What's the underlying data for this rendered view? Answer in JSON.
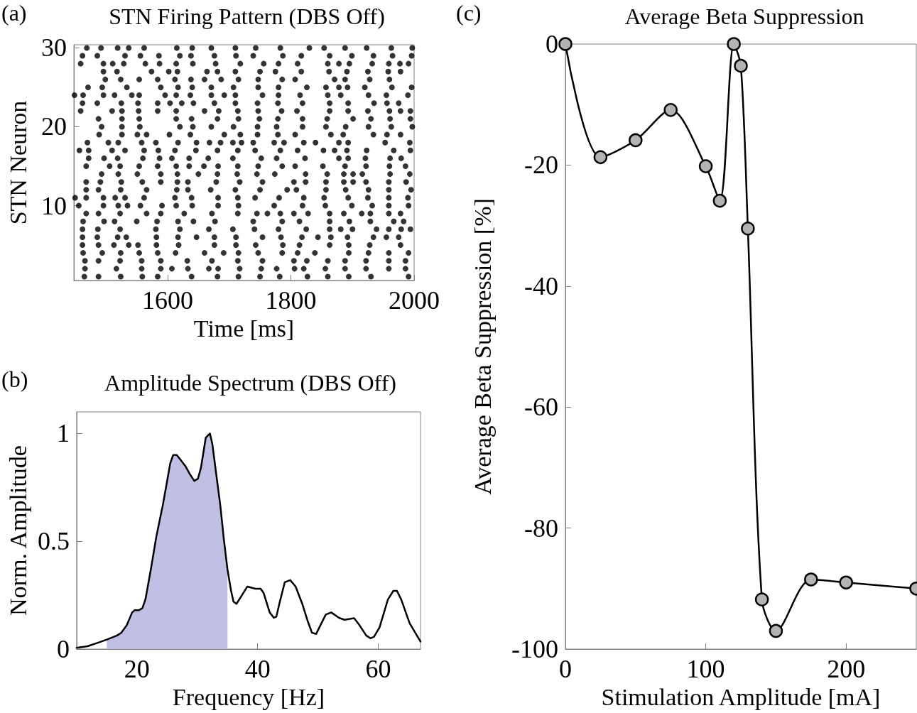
{
  "chart_data": [
    {
      "type": "scatter",
      "title": "STN Firing Pattern (DBS Off)",
      "xlabel": "Time [ms]",
      "ylabel": "STN Neuron",
      "annotations": [
        "(a)"
      ],
      "marker": "circle",
      "xlim": [
        1448,
        2000
      ],
      "xticks": [
        1600,
        1800,
        2000
      ],
      "ylim": [
        0.5,
        30.4
      ],
      "yticks": [
        10,
        20,
        30
      ],
      "series": [
        {
          "color": "#000000",
          "x": [
            1469,
            1492,
            1519,
            1537,
            1562,
            1615,
            1640,
            1671,
            1710,
            1743,
            1783,
            1830,
            1854,
            1888,
            1923,
            1963,
            1997
          ],
          "values": [
            30,
            30,
            30,
            30,
            30,
            30,
            30,
            30,
            30,
            30,
            30,
            30,
            30,
            30,
            30,
            30,
            30
          ]
        },
        {
          "color": "#000000",
          "x": [
            1462,
            1486,
            1531,
            1556,
            1586,
            1620,
            1638,
            1676,
            1711,
            1739,
            1787,
            1817,
            1863,
            1899,
            1934,
            1965,
            1996
          ],
          "values": [
            29,
            29,
            29,
            29,
            29,
            29,
            29,
            29,
            29,
            29,
            29,
            29,
            29,
            29,
            29,
            29,
            29
          ]
        },
        {
          "color": "#000000",
          "x": [
            1459,
            1496,
            1511,
            1529,
            1564,
            1587,
            1614,
            1641,
            1678,
            1718,
            1756,
            1780,
            1811,
            1860,
            1878,
            1895,
            1932,
            1959,
            1977,
            1991
          ],
          "values": [
            28,
            28,
            28,
            28,
            28,
            28,
            28,
            28,
            28,
            28,
            28,
            28,
            28,
            28,
            28,
            28,
            28,
            28,
            28,
            28
          ]
        },
        {
          "color": "#000000",
          "x": [
            1496,
            1518,
            1574,
            1602,
            1616,
            1664,
            1681,
            1710,
            1750,
            1775,
            1817,
            1862,
            1891,
            1925,
            1958,
            1978
          ],
          "values": [
            27,
            27,
            27,
            27,
            27,
            27,
            27,
            27,
            27,
            27,
            27,
            27,
            27,
            27,
            27,
            27
          ]
        },
        {
          "color": "#000000",
          "x": [
            1499,
            1524,
            1554,
            1584,
            1612,
            1638,
            1660,
            1687,
            1715,
            1747,
            1786,
            1807,
            1871,
            1888,
            1928,
            1960
          ],
          "values": [
            26,
            26,
            26,
            26,
            26,
            26,
            26,
            26,
            26,
            26,
            26,
            26,
            26,
            26,
            26,
            26
          ]
        },
        {
          "color": "#000000",
          "x": [
            1471,
            1494,
            1534,
            1589,
            1617,
            1640,
            1671,
            1707,
            1747,
            1780,
            1826,
            1857,
            1878,
            1892,
            1920,
            1964,
            1996
          ],
          "values": [
            25,
            25,
            25,
            25,
            25,
            25,
            25,
            25,
            25,
            25,
            25,
            25,
            25,
            25,
            25,
            25,
            25
          ]
        },
        {
          "color": "#000000",
          "x": [
            1449,
            1463,
            1496,
            1514,
            1542,
            1554,
            1596,
            1614,
            1637,
            1671,
            1692,
            1710,
            1754,
            1780,
            1815,
            1860,
            1881,
            1926,
            1955,
            1990
          ],
          "values": [
            24,
            24,
            24,
            24,
            24,
            24,
            24,
            24,
            24,
            24,
            24,
            24,
            24,
            24,
            24,
            24,
            24,
            24,
            24,
            24
          ]
        },
        {
          "color": "#000000",
          "x": [
            1462,
            1486,
            1525,
            1552,
            1584,
            1604,
            1623,
            1642,
            1676,
            1710,
            1746,
            1779,
            1819,
            1863,
            1893,
            1935,
            1956,
            1975
          ],
          "values": [
            23,
            23,
            23,
            23,
            23,
            23,
            23,
            23,
            23,
            23,
            23,
            23,
            23,
            23,
            23,
            23,
            23,
            23
          ]
        },
        {
          "color": "#000000",
          "x": [
            1459,
            1510,
            1526,
            1553,
            1584,
            1614,
            1660,
            1683,
            1714,
            1747,
            1785,
            1810,
            1863,
            1893,
            1925,
            1960,
            1978,
            1994
          ],
          "values": [
            22,
            22,
            22,
            22,
            22,
            22,
            22,
            22,
            22,
            22,
            22,
            22,
            22,
            22,
            22,
            22,
            22,
            22
          ]
        },
        {
          "color": "#000000",
          "x": [
            1488,
            1526,
            1554,
            1614,
            1639,
            1681,
            1715,
            1749,
            1779,
            1819,
            1859,
            1901,
            1930,
            1961,
            1994
          ],
          "values": [
            21,
            21,
            21,
            21,
            21,
            21,
            21,
            21,
            21,
            21,
            21,
            21,
            21,
            21,
            21
          ]
        },
        {
          "color": "#000000",
          "x": [
            1493,
            1526,
            1555,
            1620,
            1641,
            1671,
            1707,
            1746,
            1777,
            1819,
            1857,
            1889,
            1926,
            1963,
            1997
          ],
          "values": [
            20,
            20,
            20,
            20,
            20,
            20,
            20,
            20,
            20,
            20,
            20,
            20,
            20,
            20,
            20
          ]
        },
        {
          "color": "#000000",
          "x": [
            1489,
            1526,
            1551,
            1566,
            1603,
            1637,
            1692,
            1718,
            1746,
            1779,
            1807,
            1865,
            1885,
            1934,
            1956,
            1978
          ],
          "values": [
            19,
            19,
            19,
            19,
            19,
            19,
            19,
            19,
            19,
            19,
            19,
            19,
            19,
            19,
            19,
            19
          ]
        },
        {
          "color": "#000000",
          "x": [
            1470,
            1504,
            1520,
            1558,
            1581,
            1617,
            1647,
            1668,
            1686,
            1706,
            1720,
            1739,
            1773,
            1789,
            1821,
            1840,
            1878,
            1893,
            1953,
            1993
          ],
          "values": [
            18,
            18,
            18,
            18,
            18,
            18,
            18,
            18,
            18,
            18,
            18,
            18,
            18,
            18,
            18,
            18,
            18,
            18,
            18,
            18
          ]
        },
        {
          "color": "#000000",
          "x": [
            1457,
            1472,
            1510,
            1531,
            1562,
            1585,
            1612,
            1646,
            1681,
            1714,
            1742,
            1783,
            1811,
            1853,
            1871,
            1891,
            1923,
            1967,
            1994
          ],
          "values": [
            17,
            17,
            17,
            17,
            17,
            17,
            17,
            17,
            17,
            17,
            17,
            17,
            17,
            17,
            17,
            17,
            17,
            17,
            17
          ]
        },
        {
          "color": "#000000",
          "x": [
            1472,
            1497,
            1519,
            1560,
            1587,
            1607,
            1635,
            1666,
            1706,
            1752,
            1777,
            1823,
            1878,
            1893,
            1921,
            1961,
            1979
          ],
          "values": [
            16,
            16,
            16,
            16,
            16,
            16,
            16,
            16,
            16,
            16,
            16,
            16,
            16,
            16,
            16,
            16,
            16
          ]
        },
        {
          "color": "#000000",
          "x": [
            1468,
            1506,
            1523,
            1554,
            1584,
            1614,
            1635,
            1659,
            1682,
            1714,
            1747,
            1786,
            1807,
            1852,
            1888,
            1922,
            1960,
            1986
          ],
          "values": [
            15,
            15,
            15,
            15,
            15,
            15,
            15,
            15,
            15,
            15,
            15,
            15,
            15,
            15,
            15,
            15,
            15,
            15
          ]
        },
        {
          "color": "#000000",
          "x": [
            1493,
            1520,
            1551,
            1589,
            1616,
            1650,
            1681,
            1713,
            1745,
            1774,
            1824,
            1859,
            1886,
            1901,
            1916,
            1961,
            1993
          ],
          "values": [
            14,
            14,
            14,
            14,
            14,
            14,
            14,
            14,
            14,
            14,
            14,
            14,
            14,
            14,
            14,
            14,
            14
          ]
        },
        {
          "color": "#000000",
          "x": [
            1468,
            1491,
            1525,
            1559,
            1589,
            1616,
            1633,
            1679,
            1717,
            1754,
            1805,
            1824,
            1857,
            1886,
            1901,
            1922,
            1959,
            1987
          ],
          "values": [
            13,
            13,
            13,
            13,
            13,
            13,
            13,
            13,
            13,
            13,
            13,
            13,
            13,
            13,
            13,
            13,
            13,
            13
          ]
        },
        {
          "color": "#000000",
          "x": [
            1468,
            1488,
            1524,
            1566,
            1615,
            1633,
            1670,
            1710,
            1750,
            1794,
            1809,
            1857,
            1889,
            1926,
            1959,
            1995
          ],
          "values": [
            12,
            12,
            12,
            12,
            12,
            12,
            12,
            12,
            12,
            12,
            12,
            12,
            12,
            12,
            12,
            12
          ]
        },
        {
          "color": "#000000",
          "x": [
            1450,
            1468,
            1496,
            1515,
            1531,
            1562,
            1612,
            1639,
            1682,
            1714,
            1742,
            1781,
            1821,
            1854,
            1893,
            1925,
            1959,
            1990
          ],
          "values": [
            11,
            11,
            11,
            11,
            11,
            11,
            11,
            11,
            11,
            11,
            11,
            11,
            11,
            11,
            11,
            11,
            11,
            11
          ]
        },
        {
          "color": "#000000",
          "x": [
            1456,
            1496,
            1520,
            1535,
            1556,
            1591,
            1614,
            1640,
            1682,
            1715,
            1773,
            1819,
            1856,
            1899,
            1932,
            1959,
            1991
          ],
          "values": [
            10,
            10,
            10,
            10,
            10,
            10,
            10,
            10,
            10,
            10,
            10,
            10,
            10,
            10,
            10,
            10,
            10
          ]
        },
        {
          "color": "#000000",
          "x": [
            1468,
            1488,
            1523,
            1566,
            1589,
            1627,
            1672,
            1714,
            1745,
            1762,
            1783,
            1805,
            1828,
            1863,
            1886,
            1915,
            1929,
            1959,
            1978
          ],
          "values": [
            9,
            9,
            9,
            9,
            9,
            9,
            9,
            9,
            9,
            9,
            9,
            9,
            9,
            9,
            9,
            9,
            9,
            9,
            9
          ]
        },
        {
          "color": "#000000",
          "x": [
            1463,
            1497,
            1514,
            1550,
            1583,
            1617,
            1642,
            1677,
            1739,
            1786,
            1814,
            1863,
            1895,
            1929,
            1967,
            1983
          ],
          "values": [
            8,
            8,
            8,
            8,
            8,
            8,
            8,
            8,
            8,
            8,
            8,
            8,
            8,
            8,
            8,
            8
          ]
        },
        {
          "color": "#000000",
          "x": [
            1462,
            1487,
            1523,
            1581,
            1620,
            1667,
            1706,
            1741,
            1780,
            1825,
            1863,
            1881,
            1900,
            1939,
            1959,
            1979,
            1994
          ],
          "values": [
            7,
            7,
            7,
            7,
            7,
            7,
            7,
            7,
            7,
            7,
            7,
            7,
            7,
            7,
            7,
            7,
            7
          ]
        },
        {
          "color": "#000000",
          "x": [
            1462,
            1486,
            1519,
            1533,
            1582,
            1617,
            1647,
            1676,
            1711,
            1754,
            1784,
            1818,
            1844,
            1865,
            1892,
            1934,
            1955,
            1975
          ],
          "values": [
            6,
            6,
            6,
            6,
            6,
            6,
            6,
            6,
            6,
            6,
            6,
            6,
            6,
            6,
            6,
            6,
            6,
            6
          ]
        },
        {
          "color": "#000000",
          "x": [
            1462,
            1488,
            1513,
            1537,
            1552,
            1582,
            1618,
            1676,
            1711,
            1743,
            1787,
            1814,
            1863,
            1894,
            1928,
            1978
          ],
          "values": [
            5,
            5,
            5,
            5,
            5,
            5,
            5,
            5,
            5,
            5,
            5,
            5,
            5,
            5,
            5,
            5
          ]
        },
        {
          "color": "#000000",
          "x": [
            1463,
            1494,
            1524,
            1554,
            1584,
            1613,
            1660,
            1691,
            1715,
            1747,
            1786,
            1811,
            1839,
            1894,
            1926,
            1959,
            1991
          ],
          "values": [
            4,
            4,
            4,
            4,
            4,
            4,
            4,
            4,
            4,
            4,
            4,
            4,
            4,
            4,
            4,
            4,
            4
          ]
        },
        {
          "color": "#000000",
          "x": [
            1466,
            1488,
            1523,
            1558,
            1589,
            1632,
            1672,
            1714,
            1754,
            1805,
            1826,
            1860,
            1888,
            1922,
            1959,
            1986
          ],
          "values": [
            3,
            3,
            3,
            3,
            3,
            3,
            3,
            3,
            3,
            3,
            3,
            3,
            3,
            3,
            3,
            3
          ]
        },
        {
          "color": "#000000",
          "x": [
            1466,
            1517,
            1558,
            1589,
            1607,
            1633,
            1667,
            1682,
            1717,
            1752,
            1777,
            1806,
            1821,
            1856,
            1888,
            1922,
            1959,
            1986
          ],
          "values": [
            2,
            2,
            2,
            2,
            2,
            2,
            2,
            2,
            2,
            2,
            2,
            2,
            2,
            2,
            2,
            2,
            2,
            2
          ]
        },
        {
          "color": "#000000",
          "x": [
            1465,
            1488,
            1524,
            1559,
            1584,
            1639,
            1681,
            1715,
            1750,
            1782,
            1827,
            1860,
            1894,
            1930,
            1991
          ],
          "values": [
            1,
            1,
            1,
            1,
            1,
            1,
            1,
            1,
            1,
            1,
            1,
            1,
            1,
            1,
            1
          ]
        }
      ]
    },
    {
      "type": "line",
      "title": "Amplitude Spectrum (DBS Off)",
      "xlabel": "Frequency [Hz]",
      "ylabel": "Norm. Amplitude",
      "annotations": [
        "(b)"
      ],
      "marker": "none",
      "xlim": [
        10,
        67
      ],
      "xticks": [
        20,
        40,
        60
      ],
      "ylim": [
        0,
        1.1
      ],
      "yticks": [
        0,
        0.5,
        1
      ],
      "series": [
        {
          "type": "area",
          "color": "#bfc0e3",
          "x": [
            15,
            16.7,
            17.4,
            18.3,
            19.2,
            19.6,
            20.3,
            20.9,
            21.4,
            22.3,
            23.2,
            24.3,
            25,
            25.5,
            26,
            26.6,
            28,
            28.8,
            29.5,
            30.1,
            30.6,
            31.4,
            32.1,
            32.5,
            33.1,
            33.8,
            34.4,
            35
          ],
          "values": [
            0.044,
            0.063,
            0.076,
            0.11,
            0.17,
            0.18,
            0.18,
            0.19,
            0.23,
            0.37,
            0.52,
            0.67,
            0.78,
            0.86,
            0.9,
            0.9,
            0.85,
            0.81,
            0.78,
            0.79,
            0.84,
            0.98,
            1,
            0.95,
            0.82,
            0.67,
            0.51,
            0.37
          ]
        },
        {
          "color": "#000000",
          "x": [
            10,
            11.8,
            13.6,
            15,
            16.7,
            17.4,
            18.3,
            19.2,
            19.6,
            20.3,
            20.9,
            21.4,
            22.3,
            23.2,
            24.3,
            25,
            25.5,
            26,
            26.6,
            28,
            28.8,
            29.5,
            30.1,
            30.6,
            31.4,
            32.1,
            32.5,
            33.1,
            33.8,
            34.4,
            35,
            35.6,
            36,
            36.5,
            37.4,
            38.3,
            39.6,
            40.5,
            41,
            42,
            42.7,
            43.1,
            43.6,
            44.5,
            45.4,
            46.3,
            47.4,
            48.3,
            49,
            49.7,
            50.4,
            51.3,
            52.2,
            53.5,
            54.4,
            56,
            56.9,
            58,
            58.7,
            59.3,
            60.2,
            61.6,
            62.5,
            63.1,
            63.8,
            65.2,
            67
          ],
          "values": [
            0.006,
            0.013,
            0.03,
            0.044,
            0.063,
            0.076,
            0.11,
            0.17,
            0.18,
            0.18,
            0.19,
            0.23,
            0.37,
            0.52,
            0.67,
            0.78,
            0.86,
            0.9,
            0.9,
            0.85,
            0.81,
            0.78,
            0.79,
            0.84,
            0.98,
            1,
            0.95,
            0.82,
            0.67,
            0.51,
            0.37,
            0.27,
            0.22,
            0.21,
            0.25,
            0.29,
            0.28,
            0.28,
            0.26,
            0.17,
            0.145,
            0.15,
            0.21,
            0.31,
            0.32,
            0.29,
            0.21,
            0.13,
            0.076,
            0.07,
            0.11,
            0.16,
            0.17,
            0.145,
            0.136,
            0.143,
            0.11,
            0.063,
            0.05,
            0.057,
            0.1,
            0.23,
            0.27,
            0.27,
            0.23,
            0.12,
            0.035
          ]
        }
      ]
    },
    {
      "type": "line",
      "title": "Average Beta Suppression",
      "xlabel": "Stimulation Amplitude [mA]",
      "ylabel": "Average Beta Suppression [%]",
      "annotations": [
        "(c)"
      ],
      "marker": "circle",
      "xlim": [
        0,
        250
      ],
      "xticks": [
        0,
        100,
        200
      ],
      "ylim": [
        -100,
        0
      ],
      "yticks": [
        0,
        -20,
        -40,
        -60,
        -80,
        -100
      ],
      "x": [
        0,
        25,
        50,
        75,
        100,
        110,
        120,
        125,
        130,
        140,
        150,
        175,
        200,
        250
      ],
      "series": [
        {
          "color": "#000000",
          "values": [
            0,
            -18.7,
            -15.9,
            -10.9,
            -20.2,
            -25.9,
            0,
            -3.6,
            -30.5,
            -91.8,
            -97,
            -88.5,
            -89,
            -90
          ]
        }
      ]
    }
  ]
}
